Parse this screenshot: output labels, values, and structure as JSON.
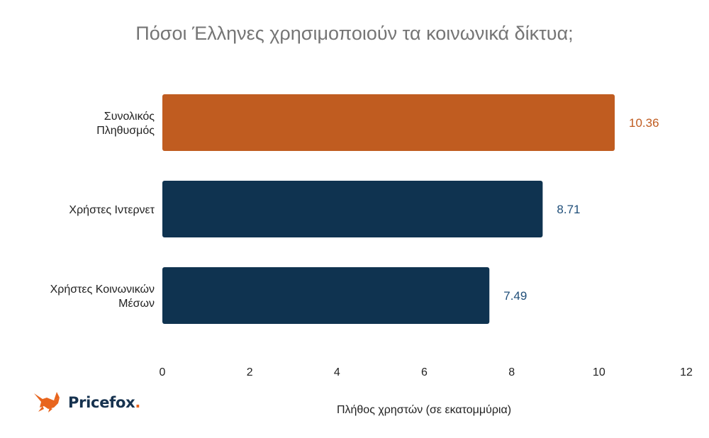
{
  "chart_data": {
    "type": "bar",
    "orientation": "horizontal",
    "title": "Πόσοι Έλληνες χρησιμοποιούν τα κοινωνικά δίκτυα;",
    "xlabel": "Πλήθος χρηστών (σε εκατομμύρια)",
    "ylabel": "",
    "xlim": [
      0,
      12
    ],
    "xticks": [
      "0",
      "2",
      "4",
      "6",
      "8",
      "10",
      "12"
    ],
    "grid": false,
    "categories": [
      [
        "Συνολικός",
        "Πληθυσμός"
      ],
      [
        "Χρήστες Ιντερνετ"
      ],
      [
        "Χρήστες Κοινωνικών",
        "Μέσων"
      ]
    ],
    "values": [
      10.36,
      8.71,
      7.49
    ],
    "value_labels": [
      "10.36",
      "8.71",
      "7.49"
    ],
    "colors": [
      "#c05c20",
      "#0f3350",
      "#0f3350"
    ]
  },
  "brand": {
    "name": "Pricefox",
    "suffix": ".",
    "icon": "fox-icon",
    "colors": {
      "text": "#16324f",
      "accent": "#e8651e"
    }
  }
}
